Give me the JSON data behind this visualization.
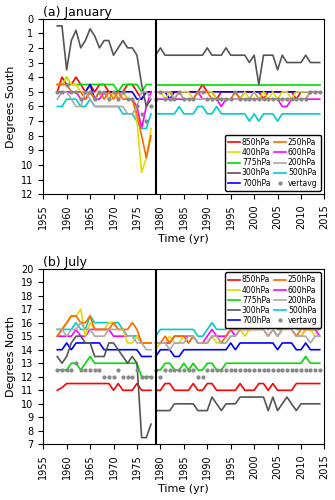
{
  "title_a": "(a) January",
  "title_b": "(b) July",
  "xlabel": "Time (yr)",
  "ylabel_a": "Degrees South",
  "ylabel_b": "Degrees North",
  "vline_year": 1979,
  "years_era40": [
    1958,
    1959,
    1960,
    1961,
    1962,
    1963,
    1964,
    1965,
    1966,
    1967,
    1968,
    1969,
    1970,
    1971,
    1972,
    1973,
    1974,
    1975,
    1976,
    1977,
    1978
  ],
  "years_interim": [
    1979,
    1980,
    1981,
    1982,
    1983,
    1984,
    1985,
    1986,
    1987,
    1988,
    1989,
    1990,
    1991,
    1992,
    1993,
    1994,
    1995,
    1996,
    1997,
    1998,
    1999,
    2000,
    2001,
    2002,
    2003,
    2004,
    2005,
    2006,
    2007,
    2008,
    2009,
    2010,
    2011,
    2012,
    2013,
    2014
  ],
  "colors": {
    "850hPa": "#ff0000",
    "775hPa": "#00dd00",
    "700hPa": "#0000ff",
    "600hPa": "#ff00ff",
    "500hPa": "#00cccc",
    "400hPa": "#dddd00",
    "300hPa": "#555555",
    "250hPa": "#ff6600",
    "200hPa": "#aaaaaa",
    "vertavg": "#888888"
  },
  "jan": {
    "ylim": [
      0,
      12
    ],
    "yticks": [
      0,
      1,
      2,
      3,
      4,
      5,
      6,
      7,
      8,
      9,
      10,
      11,
      12
    ],
    "850hPa_era40": [
      5.0,
      4.0,
      4.5,
      4.5,
      4.0,
      4.5,
      5.0,
      4.5,
      5.0,
      4.5,
      4.5,
      5.0,
      5.0,
      5.5,
      5.0,
      4.5,
      4.5,
      5.0,
      5.5,
      5.0,
      5.0
    ],
    "850hPa_int": [
      5.0,
      5.0,
      5.0,
      5.0,
      5.0,
      5.0,
      5.0,
      5.0,
      5.0,
      5.0,
      4.5,
      5.0,
      5.0,
      5.5,
      5.0,
      5.0,
      5.0,
      5.0,
      5.5,
      5.0,
      5.0,
      5.0,
      5.0,
      5.5,
      5.0,
      5.0,
      5.0,
      5.0,
      5.0,
      5.0,
      5.5,
      5.0,
      5.0,
      5.0,
      5.0,
      5.0
    ],
    "775hPa_era40": [
      4.5,
      4.5,
      4.0,
      4.5,
      4.5,
      4.5,
      4.5,
      4.5,
      4.5,
      4.5,
      4.5,
      4.5,
      4.5,
      5.0,
      4.5,
      4.5,
      4.5,
      4.5,
      5.0,
      4.5,
      4.5
    ],
    "775hPa_int": [
      4.5,
      4.5,
      4.5,
      4.5,
      4.5,
      4.5,
      4.5,
      4.5,
      4.5,
      4.5,
      4.5,
      4.5,
      4.5,
      4.5,
      4.5,
      4.5,
      4.5,
      4.5,
      4.5,
      4.5,
      4.5,
      4.5,
      4.5,
      4.5,
      4.5,
      4.5,
      4.5,
      4.5,
      4.5,
      4.5,
      4.5,
      4.5,
      4.5,
      4.5,
      4.5,
      4.5
    ],
    "700hPa_era40": [
      5.0,
      5.0,
      5.0,
      5.0,
      5.0,
      5.0,
      5.0,
      4.5,
      5.5,
      5.0,
      5.0,
      5.0,
      5.0,
      5.0,
      5.0,
      5.0,
      5.0,
      5.5,
      5.5,
      5.0,
      5.0
    ],
    "700hPa_int": [
      5.0,
      5.0,
      5.0,
      5.5,
      5.0,
      5.0,
      5.0,
      5.0,
      5.0,
      5.0,
      5.0,
      5.0,
      5.0,
      5.0,
      5.0,
      5.0,
      5.0,
      5.0,
      5.0,
      5.0,
      5.0,
      5.0,
      5.0,
      5.0,
      5.0,
      5.0,
      5.0,
      5.0,
      5.0,
      5.0,
      5.0,
      5.0,
      5.0,
      5.0,
      5.0,
      5.0
    ],
    "600hPa_era40": [
      5.0,
      5.0,
      5.0,
      5.0,
      5.0,
      5.5,
      5.5,
      5.0,
      5.5,
      5.5,
      5.0,
      5.5,
      5.0,
      5.5,
      5.0,
      5.5,
      5.5,
      6.0,
      7.5,
      6.0,
      5.0
    ],
    "600hPa_int": [
      5.5,
      5.5,
      5.5,
      5.5,
      5.5,
      5.5,
      5.5,
      5.5,
      5.5,
      5.0,
      5.5,
      5.5,
      5.5,
      5.5,
      6.0,
      5.5,
      5.5,
      5.5,
      5.5,
      5.5,
      5.5,
      5.5,
      5.5,
      5.5,
      5.5,
      5.5,
      5.5,
      6.0,
      6.0,
      5.5,
      5.5,
      5.5,
      5.5,
      5.5,
      5.5,
      5.5
    ],
    "500hPa_era40": [
      6.0,
      6.0,
      5.5,
      5.5,
      5.5,
      6.0,
      6.0,
      5.5,
      6.0,
      6.0,
      6.0,
      6.0,
      6.0,
      6.0,
      6.5,
      6.5,
      6.5,
      7.0,
      7.5,
      7.5,
      6.5
    ],
    "500hPa_int": [
      6.5,
      6.5,
      6.5,
      6.5,
      6.5,
      6.0,
      6.5,
      6.5,
      6.5,
      6.0,
      6.0,
      6.5,
      6.5,
      6.0,
      6.5,
      6.5,
      6.5,
      6.5,
      6.5,
      6.5,
      7.0,
      6.5,
      7.0,
      6.5,
      6.5,
      6.5,
      7.0,
      6.5,
      6.5,
      6.5,
      6.5,
      6.5,
      6.5,
      6.5,
      6.5,
      6.5
    ],
    "400hPa_era40": [
      4.5,
      4.5,
      4.0,
      4.5,
      4.5,
      5.0,
      5.0,
      5.0,
      5.5,
      5.0,
      5.0,
      5.5,
      5.0,
      5.5,
      5.0,
      5.5,
      5.5,
      7.0,
      10.5,
      9.5,
      7.5
    ],
    "400hPa_int": [
      5.0,
      5.0,
      5.5,
      5.0,
      5.5,
      5.0,
      5.0,
      5.0,
      5.5,
      5.0,
      5.0,
      5.0,
      5.0,
      5.5,
      5.5,
      5.5,
      5.5,
      5.0,
      5.5,
      5.0,
      5.5,
      5.0,
      5.5,
      5.0,
      5.5,
      5.0,
      5.5,
      5.0,
      5.0,
      5.5,
      5.0,
      5.0,
      5.0,
      5.0,
      5.0,
      5.0
    ],
    "300hPa_era40": [
      0.5,
      0.5,
      3.5,
      1.5,
      0.8,
      2.0,
      1.5,
      0.7,
      1.2,
      2.0,
      1.5,
      1.5,
      2.5,
      2.0,
      1.5,
      2.0,
      2.0,
      2.5,
      4.5,
      6.0,
      5.5
    ],
    "300hPa_int": [
      2.5,
      2.0,
      2.5,
      2.5,
      2.5,
      2.5,
      2.5,
      2.5,
      2.5,
      2.5,
      2.5,
      2.0,
      2.5,
      2.5,
      2.5,
      2.0,
      2.5,
      2.5,
      2.5,
      2.5,
      3.0,
      2.5,
      4.5,
      2.5,
      2.5,
      2.5,
      3.5,
      2.5,
      3.0,
      3.0,
      3.0,
      3.0,
      2.5,
      3.0,
      3.0,
      3.0
    ],
    "250hPa_era40": [
      4.5,
      4.5,
      4.5,
      5.0,
      5.0,
      5.0,
      5.5,
      5.0,
      5.5,
      5.0,
      5.5,
      5.0,
      5.5,
      5.0,
      5.5,
      5.5,
      5.5,
      6.5,
      8.0,
      9.5,
      8.0
    ],
    "250hPa_int": [
      5.0,
      5.0,
      5.0,
      5.0,
      5.5,
      5.0,
      5.5,
      5.5,
      5.5,
      5.0,
      5.0,
      5.0,
      5.5,
      5.5,
      5.5,
      5.5,
      5.5,
      5.0,
      5.5,
      5.5,
      5.5,
      5.5,
      5.5,
      5.5,
      5.5,
      5.5,
      5.5,
      5.5,
      5.5,
      5.5,
      5.5,
      5.5,
      5.5,
      5.0,
      5.0,
      5.0
    ],
    "200hPa_era40": [
      5.5,
      5.0,
      5.0,
      5.5,
      6.0,
      6.0,
      5.0,
      5.5,
      6.0,
      6.0,
      6.0,
      6.0,
      6.0,
      6.0,
      6.0,
      6.5,
      6.5,
      6.0,
      5.0,
      5.0,
      5.5
    ],
    "200hPa_int": [
      5.0,
      5.0,
      5.0,
      5.0,
      5.5,
      5.0,
      5.5,
      5.5,
      5.5,
      5.5,
      5.5,
      5.5,
      5.5,
      5.5,
      5.5,
      5.5,
      5.5,
      5.5,
      5.5,
      5.5,
      5.5,
      5.0,
      5.5,
      5.5,
      5.5,
      5.5,
      5.5,
      5.5,
      5.5,
      5.5,
      5.5,
      5.5,
      5.5,
      5.0,
      5.0,
      5.0
    ],
    "vertavg_era40": [
      5.0,
      5.0,
      4.5,
      5.0,
      5.0,
      5.5,
      5.0,
      5.0,
      5.5,
      5.0,
      5.0,
      5.5,
      5.0,
      5.5,
      5.0,
      5.5,
      5.5,
      6.0,
      6.5,
      7.0,
      6.0
    ],
    "vertavg_int": [
      5.5,
      5.0,
      5.5,
      5.5,
      5.5,
      5.0,
      5.5,
      5.5,
      5.5,
      5.0,
      5.0,
      5.5,
      5.5,
      5.5,
      5.5,
      5.5,
      5.5,
      5.0,
      5.5,
      5.5,
      5.5,
      5.5,
      5.5,
      5.5,
      5.5,
      5.5,
      5.5,
      5.5,
      5.5,
      5.5,
      5.5,
      5.5,
      5.5,
      5.0,
      5.0,
      5.0
    ]
  },
  "jul": {
    "ylim": [
      7,
      20
    ],
    "yticks": [
      7,
      8,
      9,
      10,
      11,
      12,
      13,
      14,
      15,
      16,
      17,
      18,
      19,
      20
    ],
    "850hPa_era40": [
      11.0,
      11.2,
      11.5,
      11.5,
      11.5,
      11.5,
      11.5,
      11.5,
      11.5,
      11.5,
      11.5,
      11.5,
      11.0,
      11.5,
      11.0,
      11.0,
      11.0,
      11.5,
      11.0,
      11.0,
      11.0
    ],
    "850hPa_int": [
      11.0,
      11.0,
      11.5,
      11.5,
      11.0,
      11.0,
      11.0,
      11.0,
      11.5,
      11.0,
      11.0,
      11.5,
      11.5,
      11.0,
      11.0,
      11.0,
      11.0,
      11.0,
      11.5,
      11.0,
      11.0,
      11.0,
      11.5,
      11.5,
      11.0,
      11.5,
      11.0,
      11.0,
      11.0,
      11.0,
      11.5,
      11.5,
      11.5,
      11.5,
      11.5,
      11.5
    ],
    "775hPa_era40": [
      12.5,
      12.5,
      12.5,
      13.0,
      13.0,
      12.5,
      13.0,
      13.5,
      13.0,
      13.0,
      13.0,
      13.0,
      13.0,
      13.0,
      13.0,
      13.0,
      13.0,
      13.0,
      12.0,
      12.0,
      12.0
    ],
    "775hPa_int": [
      12.5,
      12.5,
      13.0,
      13.0,
      12.5,
      12.5,
      13.0,
      12.5,
      13.0,
      12.5,
      12.5,
      13.0,
      13.0,
      12.5,
      12.5,
      13.0,
      13.0,
      13.0,
      13.0,
      13.0,
      13.0,
      13.0,
      13.0,
      13.0,
      13.0,
      13.0,
      13.0,
      13.0,
      13.0,
      13.0,
      13.0,
      13.0,
      13.5,
      13.0,
      13.0,
      13.0
    ],
    "700hPa_era40": [
      14.0,
      14.0,
      14.5,
      14.0,
      14.5,
      14.5,
      14.5,
      14.5,
      14.5,
      14.5,
      14.0,
      14.0,
      14.0,
      14.0,
      14.0,
      14.0,
      14.0,
      14.0,
      13.5,
      13.5,
      13.5
    ],
    "700hPa_int": [
      13.5,
      14.0,
      14.0,
      14.0,
      13.5,
      13.5,
      14.0,
      14.0,
      14.0,
      14.0,
      14.0,
      14.0,
      14.0,
      14.0,
      14.0,
      14.0,
      14.5,
      14.0,
      14.5,
      14.5,
      14.5,
      14.5,
      14.5,
      14.5,
      14.5,
      14.5,
      14.0,
      14.5,
      14.5,
      14.5,
      14.0,
      14.0,
      14.5,
      14.0,
      14.0,
      14.0
    ],
    "600hPa_era40": [
      15.0,
      15.0,
      15.0,
      15.0,
      15.5,
      15.0,
      15.0,
      15.5,
      15.5,
      15.5,
      15.5,
      15.5,
      15.0,
      15.0,
      15.0,
      15.0,
      15.0,
      15.0,
      14.5,
      14.5,
      14.5
    ],
    "600hPa_int": [
      14.5,
      14.5,
      14.5,
      14.5,
      15.0,
      15.0,
      15.0,
      15.0,
      15.0,
      14.5,
      14.5,
      15.0,
      15.5,
      15.0,
      15.0,
      15.0,
      15.5,
      15.0,
      15.5,
      15.5,
      15.5,
      15.5,
      15.5,
      15.5,
      15.0,
      15.5,
      15.0,
      15.5,
      16.0,
      15.5,
      15.0,
      15.0,
      15.5,
      15.5,
      15.5,
      15.0
    ],
    "500hPa_era40": [
      15.5,
      15.5,
      15.5,
      15.5,
      16.0,
      15.5,
      15.5,
      16.5,
      16.0,
      16.0,
      16.0,
      16.0,
      16.0,
      16.0,
      15.5,
      15.0,
      15.0,
      15.0,
      14.5,
      14.5,
      14.5
    ],
    "500hPa_int": [
      15.0,
      15.5,
      15.5,
      15.5,
      15.5,
      15.5,
      15.5,
      15.5,
      15.5,
      15.0,
      15.0,
      15.5,
      16.0,
      15.5,
      15.5,
      15.5,
      16.0,
      15.5,
      16.0,
      16.0,
      16.0,
      16.0,
      16.0,
      16.0,
      15.5,
      16.0,
      15.5,
      15.5,
      16.0,
      16.0,
      15.5,
      15.5,
      16.0,
      15.5,
      15.5,
      15.5
    ],
    "400hPa_era40": [
      15.0,
      15.5,
      16.0,
      16.5,
      16.5,
      17.0,
      15.0,
      16.0,
      15.5,
      15.5,
      15.5,
      16.0,
      16.0,
      15.5,
      15.5,
      14.5,
      14.5,
      15.0,
      14.5,
      14.5,
      14.5
    ],
    "400hPa_int": [
      14.0,
      14.5,
      14.5,
      15.0,
      14.5,
      14.5,
      15.0,
      14.5,
      15.0,
      14.5,
      14.5,
      14.5,
      15.0,
      14.5,
      14.5,
      14.5,
      15.0,
      15.0,
      15.5,
      15.0,
      15.5,
      15.5,
      15.5,
      15.5,
      15.0,
      15.5,
      15.0,
      15.5,
      15.5,
      15.5,
      15.0,
      15.0,
      15.5,
      15.5,
      15.0,
      15.0
    ],
    "300hPa_era40": [
      13.5,
      13.0,
      13.5,
      14.5,
      15.0,
      15.0,
      14.5,
      14.5,
      13.5,
      13.5,
      13.5,
      14.5,
      14.5,
      14.0,
      13.5,
      13.0,
      13.5,
      13.0,
      7.5,
      7.5,
      8.5
    ],
    "300hPa_int": [
      9.5,
      9.5,
      9.5,
      9.5,
      10.0,
      10.0,
      10.0,
      10.0,
      10.0,
      9.5,
      9.5,
      9.5,
      10.5,
      10.0,
      9.5,
      10.0,
      10.0,
      10.0,
      10.5,
      10.5,
      10.5,
      10.5,
      10.5,
      10.5,
      9.5,
      10.5,
      9.5,
      10.0,
      10.5,
      10.0,
      9.5,
      10.0,
      10.0,
      10.0,
      10.0,
      10.0
    ],
    "250hPa_era40": [
      15.0,
      15.5,
      16.0,
      16.5,
      16.5,
      16.0,
      16.0,
      16.5,
      15.5,
      15.5,
      15.5,
      15.5,
      16.0,
      15.5,
      15.5,
      15.5,
      16.0,
      15.5,
      14.5,
      14.5,
      14.5
    ],
    "250hPa_int": [
      14.5,
      14.5,
      15.0,
      14.5,
      15.0,
      15.0,
      15.0,
      14.5,
      15.0,
      14.5,
      14.5,
      14.5,
      15.0,
      15.0,
      14.5,
      15.0,
      15.5,
      15.5,
      15.5,
      15.5,
      15.5,
      16.0,
      16.0,
      16.0,
      15.5,
      16.0,
      15.5,
      15.5,
      16.0,
      15.5,
      15.0,
      15.5,
      15.5,
      15.5,
      15.5,
      15.5
    ],
    "200hPa_era40": [
      15.5,
      15.5,
      15.0,
      15.5,
      15.5,
      16.0,
      15.5,
      15.5,
      15.0,
      15.0,
      15.0,
      15.5,
      15.5,
      15.5,
      15.5,
      15.0,
      15.0,
      14.5,
      14.5,
      14.0,
      14.0
    ],
    "200hPa_int": [
      14.5,
      14.5,
      14.5,
      14.0,
      14.5,
      14.5,
      14.5,
      15.0,
      15.0,
      14.5,
      14.5,
      14.5,
      15.0,
      15.0,
      14.5,
      14.5,
      15.0,
      15.0,
      15.5,
      15.5,
      15.5,
      15.5,
      15.5,
      15.5,
      15.0,
      15.5,
      15.0,
      15.5,
      15.5,
      15.5,
      15.0,
      15.0,
      15.0,
      14.5,
      15.0,
      15.0
    ],
    "vertavg_era40": [
      12.5,
      12.5,
      12.5,
      12.5,
      13.0,
      12.5,
      12.5,
      12.5,
      12.5,
      12.5,
      12.0,
      12.0,
      12.0,
      12.5,
      12.0,
      12.0,
      12.0,
      12.5,
      12.0,
      12.0,
      12.0
    ],
    "vertavg_int": [
      12.5,
      12.0,
      12.5,
      12.5,
      12.5,
      12.5,
      12.5,
      12.5,
      12.5,
      12.0,
      12.0,
      12.5,
      12.5,
      12.5,
      12.5,
      12.5,
      12.5,
      12.5,
      12.5,
      12.5,
      12.5,
      12.5,
      12.5,
      12.5,
      12.5,
      12.5,
      12.5,
      12.5,
      12.5,
      12.5,
      12.5,
      12.5,
      12.5,
      12.5,
      12.5,
      12.5
    ]
  },
  "xlim": [
    1955,
    2015
  ],
  "xticks": [
    1955,
    1960,
    1965,
    1970,
    1975,
    1980,
    1985,
    1990,
    1995,
    2000,
    2005,
    2010,
    2015
  ],
  "pressure_levels": [
    "850hPa",
    "775hPa",
    "700hPa",
    "600hPa",
    "500hPa",
    "400hPa",
    "300hPa",
    "250hPa",
    "200hPa"
  ],
  "legend_col1": [
    "850hPa",
    "775hPa",
    "700hPa",
    "600hPa",
    "500hPa"
  ],
  "legend_col2": [
    "400hPa",
    "300hPa",
    "250hPa",
    "200hPa",
    "vertavg"
  ],
  "lw": 1.2
}
